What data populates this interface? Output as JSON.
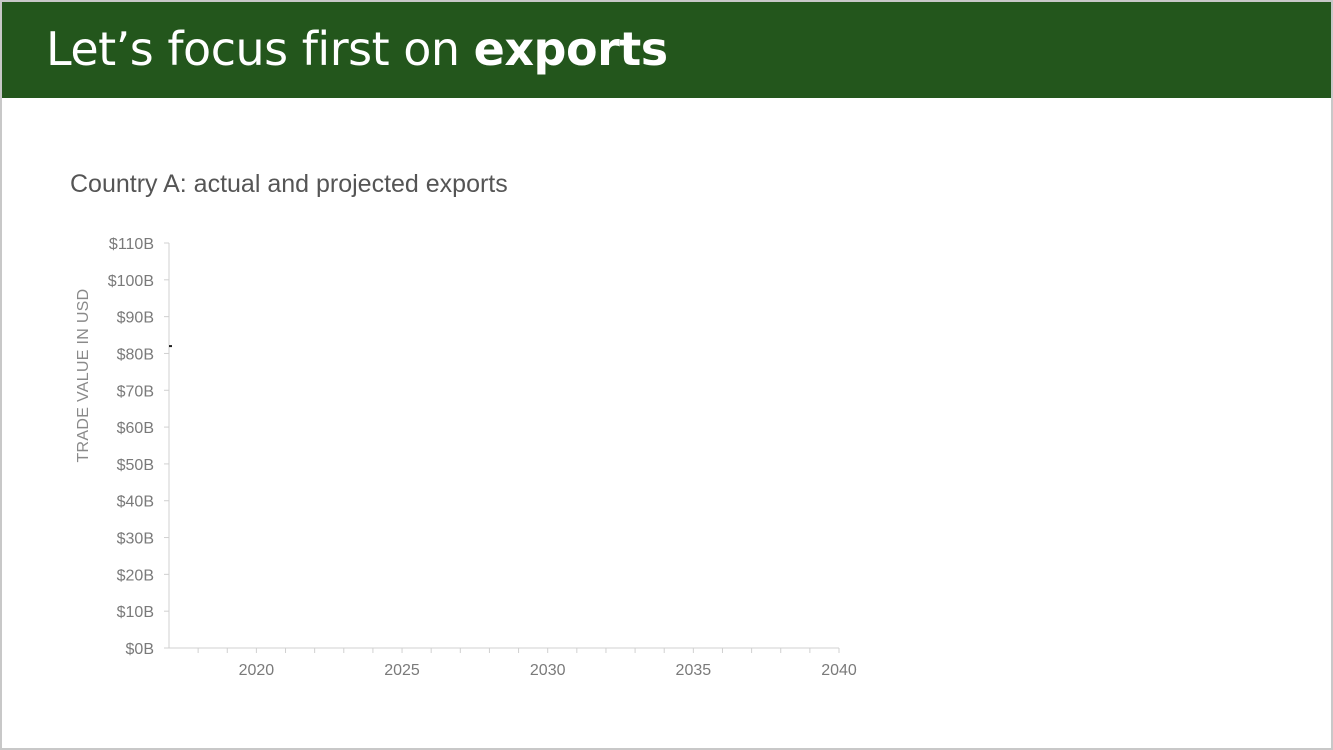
{
  "slide": {
    "title_light": "Let’s focus first on ",
    "title_bold": "exports"
  },
  "chart_data": {
    "type": "line",
    "title": "Country A: actual and projected exports",
    "xlabel": "",
    "ylabel": "TRADE VALUE IN USD",
    "xlim": [
      2017,
      2040
    ],
    "ylim": [
      0,
      110
    ],
    "x_ticks": [
      2020,
      2025,
      2030,
      2035,
      2040
    ],
    "x_tick_labels": [
      "2020",
      "2025",
      "2030",
      "2035",
      "2040"
    ],
    "y_ticks": [
      0,
      10,
      20,
      30,
      40,
      50,
      60,
      70,
      80,
      90,
      100,
      110
    ],
    "y_tick_labels": [
      "$0B",
      "$10B",
      "$20B",
      "$30B",
      "$40B",
      "$50B",
      "$60B",
      "$70B",
      "$80B",
      "$90B",
      "$100B",
      "$110B"
    ],
    "grid": false,
    "series": [
      {
        "x": [
          2017
        ],
        "values": [
          82
        ],
        "color": "#222222"
      }
    ]
  },
  "colors": {
    "header_bg": "#23561c",
    "axis": "#d0d0d0",
    "tick_text": "#7a7a7a"
  }
}
